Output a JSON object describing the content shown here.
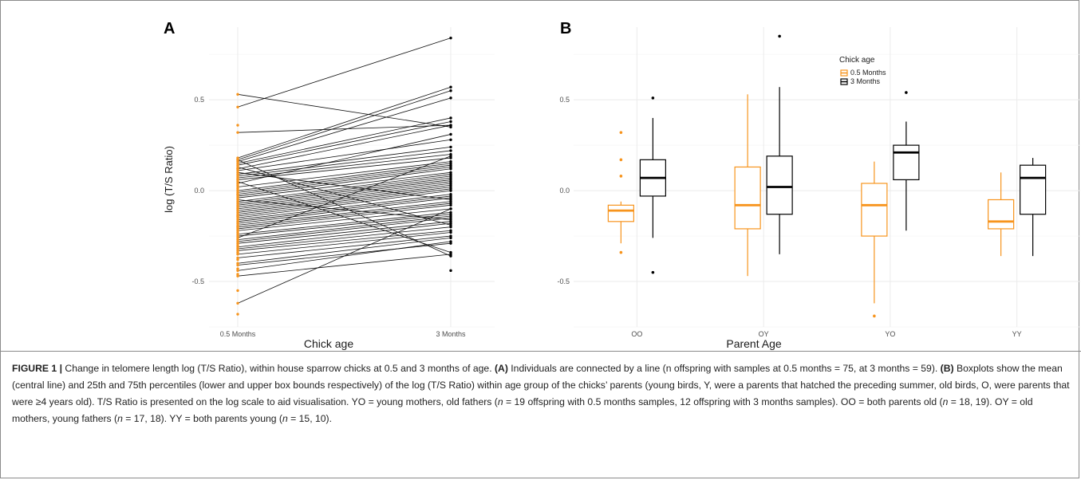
{
  "figure": {
    "caption_number": "FIGURE 1 |",
    "caption_parts": [
      {
        "t": " Change in telomere length log (T/S Ratio), within house sparrow chicks at 0.5 and 3 months of age. "
      },
      {
        "t": "(A)",
        "b": true
      },
      {
        "t": " Individuals are connected by a line (n offspring with samples at 0.5 months = 75, at 3 months = 59). "
      },
      {
        "t": "(B)",
        "b": true
      },
      {
        "t": " Boxplots show the mean (central line) and 25th and 75th percentiles (lower and upper box bounds respectively) of the log (T/S Ratio) within age group of the chicks’ parents (young birds, Y, were a parents that hatched the preceding summer, old birds, O, were parents that were ≥4 years old). T/S Ratio is presented on the log scale to aid visualisation. YO = young mothers, old fathers ("
      },
      {
        "t": "n",
        "i": true
      },
      {
        "t": " = 19 offspring with 0.5 months samples, 12 offspring with 3 months samples). OO = both parents old ("
      },
      {
        "t": "n",
        "i": true
      },
      {
        "t": " = 18, 19). OY = old mothers, young fathers ("
      },
      {
        "t": "n",
        "i": true
      },
      {
        "t": " = 17, 18). YY = both parents young ("
      },
      {
        "t": "n",
        "i": true
      },
      {
        "t": " = 15, 10)."
      }
    ]
  },
  "colors": {
    "orange": "#f7941d",
    "black": "#000000",
    "grid": "#ebebeb"
  },
  "chart_data": [
    {
      "panel_label": "A",
      "type": "line",
      "xlabel": "Chick age",
      "ylabel": "log (T/S Ratio)",
      "categories": [
        "0.5 Months",
        "3 Months"
      ],
      "ylim": [
        -0.75,
        0.9
      ],
      "yticks": [
        -0.5,
        0.0,
        0.5
      ],
      "ytick_labels": [
        "-0.5",
        "0.0",
        "0.5"
      ],
      "grid": true,
      "pairs": [
        [
          0.46,
          0.84
        ],
        [
          0.53,
          0.35
        ],
        [
          0.32,
          0.36
        ],
        [
          0.18,
          0.57
        ],
        [
          0.17,
          0.55
        ],
        [
          0.16,
          0.51
        ],
        [
          0.15,
          0.4
        ],
        [
          0.14,
          0.38
        ],
        [
          0.12,
          0.36
        ],
        [
          0.11,
          0.28
        ],
        [
          0.1,
          -0.05
        ],
        [
          0.09,
          0.24
        ],
        [
          0.08,
          0.22
        ],
        [
          0.07,
          0.2
        ],
        [
          0.06,
          0.18
        ],
        [
          0.04,
          0.31
        ],
        [
          0.02,
          0.16
        ],
        [
          0.0,
          0.15
        ],
        [
          -0.01,
          0.14
        ],
        [
          -0.02,
          0.13
        ],
        [
          -0.03,
          0.12
        ],
        [
          -0.04,
          0.1
        ],
        [
          -0.05,
          -0.16
        ],
        [
          -0.06,
          0.09
        ],
        [
          -0.07,
          0.08
        ],
        [
          -0.08,
          0.07
        ],
        [
          -0.09,
          0.06
        ],
        [
          -0.1,
          0.05
        ],
        [
          -0.11,
          0.04
        ],
        [
          -0.12,
          0.03
        ],
        [
          -0.13,
          0.02
        ],
        [
          -0.14,
          0.01
        ],
        [
          -0.15,
          0.0
        ],
        [
          -0.16,
          -0.02
        ],
        [
          -0.17,
          -0.03
        ],
        [
          -0.18,
          -0.04
        ],
        [
          -0.19,
          -0.06
        ],
        [
          -0.2,
          -0.07
        ],
        [
          -0.21,
          -0.08
        ],
        [
          -0.22,
          -0.1
        ],
        [
          -0.24,
          -0.12
        ],
        [
          -0.25,
          -0.13
        ],
        [
          -0.27,
          -0.14
        ],
        [
          -0.28,
          -0.15
        ],
        [
          -0.29,
          -0.17
        ],
        [
          -0.31,
          -0.18
        ],
        [
          -0.32,
          -0.2
        ],
        [
          -0.33,
          -0.22
        ],
        [
          -0.35,
          -0.23
        ],
        [
          -0.37,
          -0.25
        ],
        [
          -0.4,
          -0.26
        ],
        [
          -0.44,
          -0.28
        ],
        [
          -0.47,
          -0.35
        ],
        [
          -0.62,
          -0.1
        ],
        [
          0.17,
          -0.36
        ],
        [
          0.05,
          -0.34
        ],
        [
          -0.41,
          -0.29
        ],
        [
          -0.26,
          0.19
        ],
        [
          0.13,
          -0.19
        ]
      ],
      "unpaired_05": [
        0.36,
        -0.55,
        -0.68,
        0.01,
        -0.43,
        -0.3,
        0.03,
        -0.23,
        -0.38,
        0.12,
        -0.14,
        -0.34,
        -0.02,
        0.06,
        -0.2,
        -0.46
      ],
      "unpaired_3": [
        -0.44
      ]
    },
    {
      "panel_label": "B",
      "type": "box",
      "xlabel": "Parent Age",
      "categories": [
        "OO",
        "OY",
        "YO",
        "YY"
      ],
      "ylim": [
        -0.75,
        0.9
      ],
      "yticks": [
        -0.5,
        0.0,
        0.5
      ],
      "ytick_labels": [
        "-0.5",
        "0.0",
        "0.5"
      ],
      "grid": true,
      "legend": {
        "title": "Chick age",
        "position": "top-right",
        "entries": [
          "0.5 Months",
          "3 Months"
        ]
      },
      "series": [
        {
          "name": "0.5 Months",
          "color": "#f7941d",
          "boxes": [
            {
              "whisker_low": -0.29,
              "q1": -0.17,
              "median": -0.11,
              "q3": -0.08,
              "whisker_high": -0.06,
              "outliers": [
                0.32,
                0.17,
                0.08,
                -0.34
              ]
            },
            {
              "whisker_low": -0.47,
              "q1": -0.21,
              "median": -0.08,
              "q3": 0.13,
              "whisker_high": 0.53,
              "outliers": []
            },
            {
              "whisker_low": -0.62,
              "q1": -0.25,
              "median": -0.08,
              "q3": 0.04,
              "whisker_high": 0.16,
              "outliers": [
                -0.69
              ]
            },
            {
              "whisker_low": -0.36,
              "q1": -0.21,
              "median": -0.17,
              "q3": -0.05,
              "whisker_high": 0.1,
              "outliers": []
            }
          ]
        },
        {
          "name": "3 Months",
          "color": "#000000",
          "boxes": [
            {
              "whisker_low": -0.26,
              "q1": -0.03,
              "median": 0.07,
              "q3": 0.17,
              "whisker_high": 0.4,
              "outliers": [
                0.51,
                -0.45
              ]
            },
            {
              "whisker_low": -0.35,
              "q1": -0.13,
              "median": 0.02,
              "q3": 0.19,
              "whisker_high": 0.57,
              "outliers": [
                0.85
              ]
            },
            {
              "whisker_low": -0.22,
              "q1": 0.06,
              "median": 0.21,
              "q3": 0.25,
              "whisker_high": 0.38,
              "outliers": [
                0.54
              ]
            },
            {
              "whisker_low": -0.36,
              "q1": -0.13,
              "median": 0.07,
              "q3": 0.14,
              "whisker_high": 0.18,
              "outliers": []
            }
          ]
        }
      ]
    }
  ]
}
